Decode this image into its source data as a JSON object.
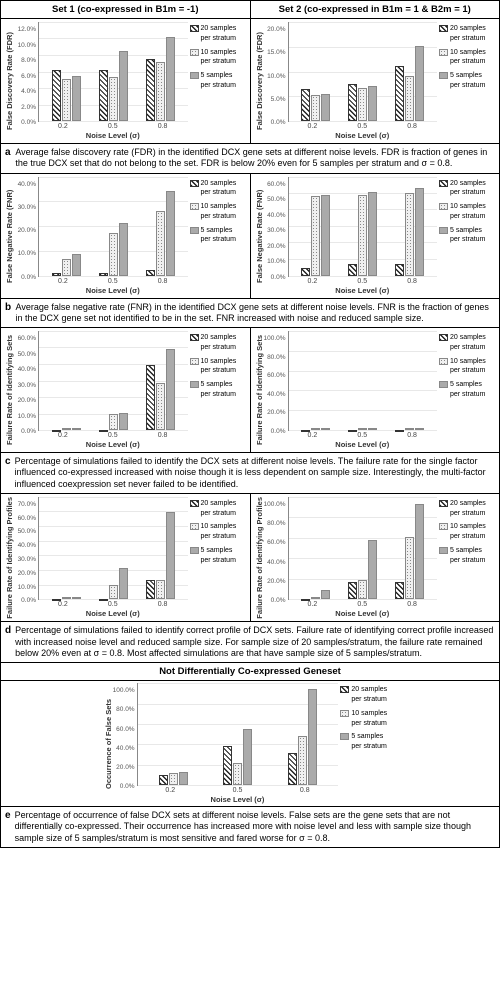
{
  "columns": {
    "set1": "Set 1 (co-expressed in B1m = -1)",
    "set2": "Set 2 (co-expressed in B1m = 1 & B2m = 1)"
  },
  "legend": {
    "s20": "20 samples per stratum",
    "s10": "10 samples per stratum",
    "s5": "5 samples per stratum"
  },
  "x_categories": [
    "0.2",
    "0.5",
    "0.8"
  ],
  "x_label": "Noise Level (σ)",
  "panels": {
    "a": {
      "caption": "Average false discovery rate (FDR) in the identified DCX gene sets at different noise levels. FDR is fraction of genes in the true DCX set that do not belong to the set. FDR is below 20% even for 5 samples per stratum and σ = 0.8.",
      "y_label": "False Discovery Rate (FDR)",
      "set1": {
        "ymax": 12,
        "ytick_step": 2,
        "series": {
          "s20": [
            6.4,
            6.5,
            7.8
          ],
          "s10": [
            5.3,
            5.6,
            7.4
          ],
          "s5": [
            5.7,
            8.8,
            10.6
          ]
        }
      },
      "set2": {
        "ymax": 20,
        "ytick_step": 5,
        "series": {
          "s20": [
            6.8,
            7.8,
            11.5
          ],
          "s10": [
            5.4,
            7.0,
            9.5
          ],
          "s5": [
            5.7,
            7.3,
            15.7
          ]
        }
      }
    },
    "b": {
      "caption": "Average false negative rate (FNR) in the identified DCX gene sets at different noise levels. FNR is the fraction of genes in the DCX gene set not identified to be in the set. FNR increased with noise and reduced sample size.",
      "y_label": "False Negative Rate (FNR)",
      "set1": {
        "ymax": 40,
        "ytick_step": 10,
        "series": {
          "s20": [
            1,
            1,
            2.5
          ],
          "s10": [
            7,
            18,
            27
          ],
          "s5": [
            9,
            22,
            35.5
          ]
        }
      },
      "set2": {
        "ymax": 60,
        "ytick_step": 10,
        "series": {
          "s20": [
            5,
            7,
            7.5
          ],
          "s10": [
            50,
            51,
            52
          ],
          "s5": [
            51,
            52.5,
            55
          ]
        }
      }
    },
    "c": {
      "caption": "Percentage of simulations failed to identify the DCX sets at different noise levels. The failure rate for the single factor influenced co-expressed increased with noise though it is less dependent on sample size. Interestingly, the multi-factor influenced coexpression set never failed to be identified.",
      "y_label": "Failure Rate of Identifying Sets",
      "set1": {
        "ymax": 60,
        "ytick_step": 10,
        "series": {
          "s20": [
            0,
            0,
            41
          ],
          "s10": [
            0,
            10,
            30
          ],
          "s5": [
            0,
            11,
            51
          ]
        }
      },
      "set2": {
        "ymax": 100,
        "ytick_step": 20,
        "series": {
          "s20": [
            0,
            0,
            0
          ],
          "s10": [
            0,
            0,
            0
          ],
          "s5": [
            0,
            0,
            0
          ]
        }
      }
    },
    "d": {
      "caption": "Percentage of simulations failed to identify correct profile of DCX sets. Failure rate of identifying correct profile increased with increased noise level and reduced sample size. For sample size of 20 samples/stratum, the failure rate remained below 20% even at σ = 0.8. Most affected simulations are that have sample size of 5 samples/stratum.",
      "y_label": "Failure Rate of Identifying Profiles",
      "set1": {
        "ymax": 70,
        "ytick_step": 10,
        "series": {
          "s20": [
            0,
            0,
            14
          ],
          "s10": [
            0,
            10,
            14
          ],
          "s5": [
            0,
            22,
            62
          ]
        }
      },
      "set2": {
        "ymax": 100,
        "ytick_step": 20,
        "series": {
          "s20": [
            0,
            18,
            18
          ],
          "s10": [
            0,
            20,
            63
          ],
          "s5": [
            10,
            60,
            97
          ]
        }
      }
    },
    "e": {
      "title": "Not Differentially Co-expressed Geneset",
      "caption": "Percentage of occurrence of false DCX sets at different noise levels. False sets are the gene sets that are not differentially co-expressed. Their occurrence has increased more with noise level and less with sample size though sample size of 5 samples/stratum is most sensitive and fared worse for σ = 0.8.",
      "y_label": "Occurrence of False Sets",
      "chart": {
        "ymax": 100,
        "ytick_step": 20,
        "series": {
          "s20": [
            10,
            40,
            33
          ],
          "s10": [
            12,
            23,
            50
          ],
          "s5": [
            13,
            57,
            98
          ]
        }
      }
    }
  },
  "colors": {
    "grid": "#e8e8e8",
    "axis": "#888888",
    "text": "#333333",
    "solid_bar": "#aaaaaa",
    "background": "#ffffff"
  }
}
